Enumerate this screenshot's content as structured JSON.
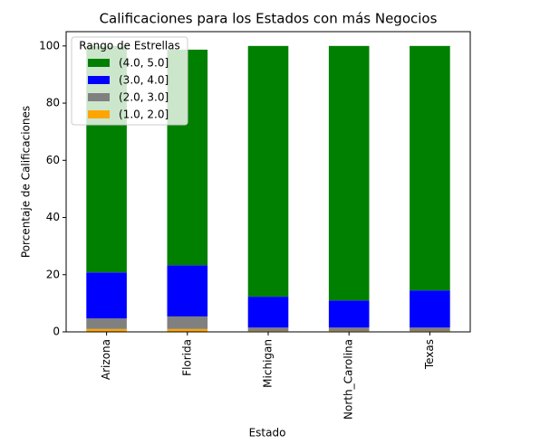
{
  "chart_data": {
    "type": "stacked_bar",
    "title": "Calificaciones para los Estados con más Negocios",
    "xlabel": "Estado",
    "ylabel": "Porcentaje de Calificaciones",
    "legend_title": "Rango de Estrellas",
    "legend_position": "upper left",
    "categories": [
      "Arizona",
      "Florida",
      "Michigan",
      "North_Carolina",
      "Texas"
    ],
    "series": [
      {
        "name": "(1.0, 2.0]",
        "color": "#ffa500",
        "values": [
          1.0,
          1.0,
          0.3,
          0.3,
          0.3
        ]
      },
      {
        "name": "(2.0, 3.0]",
        "color": "#808080",
        "values": [
          3.7,
          4.4,
          1.2,
          1.2,
          1.2
        ]
      },
      {
        "name": "(3.0, 4.0]",
        "color": "#0000ff",
        "values": [
          16.1,
          17.9,
          10.8,
          9.5,
          13.0
        ]
      },
      {
        "name": "(4.0, 5.0]",
        "color": "#008000",
        "values": [
          79.2,
          75.4,
          87.7,
          89.0,
          85.5
        ]
      }
    ],
    "ylim": [
      0,
      105
    ],
    "yticks": [
      0,
      20,
      40,
      60,
      80,
      100
    ]
  }
}
